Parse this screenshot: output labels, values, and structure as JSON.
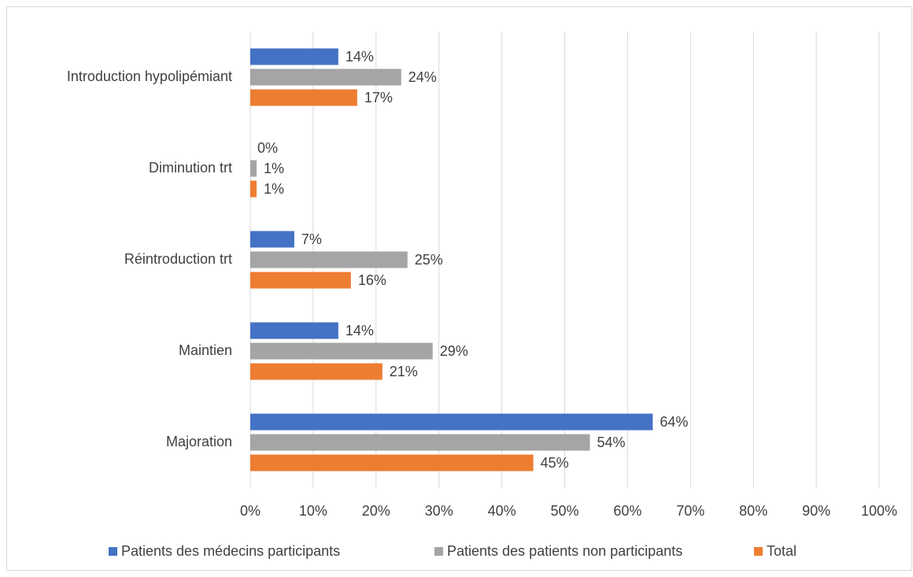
{
  "chart_data": {
    "type": "hbar",
    "categories": [
      "Introduction hypolipémiant",
      "Diminution trt",
      "Réintroduction trt",
      "Maintien",
      "Majoration"
    ],
    "series": [
      {
        "name": "Patients des médecins participants",
        "color": "#4472c4",
        "values": [
          14,
          0,
          7,
          14,
          64
        ],
        "value_labels": [
          "14%",
          "0%",
          "7%",
          "14%",
          "64%"
        ]
      },
      {
        "name": "Patients des patients non participants",
        "color": "#a5a5a5",
        "values": [
          24,
          1,
          25,
          29,
          54
        ],
        "value_labels": [
          "24%",
          "1%",
          "25%",
          "29%",
          "54%"
        ]
      },
      {
        "name": "Total",
        "color": "#ed7d31",
        "values": [
          17,
          1,
          16,
          21,
          45
        ],
        "value_labels": [
          "17%",
          "1%",
          "16%",
          "21%",
          "45%"
        ]
      }
    ],
    "xlim": [
      0,
      100
    ],
    "xticks": [
      {
        "value": 0,
        "label": "0%"
      },
      {
        "value": 10,
        "label": "10%"
      },
      {
        "value": 20,
        "label": "20%"
      },
      {
        "value": 30,
        "label": "30%"
      },
      {
        "value": 40,
        "label": "40%"
      },
      {
        "value": 50,
        "label": "50%"
      },
      {
        "value": 60,
        "label": "60%"
      },
      {
        "value": 70,
        "label": "70%"
      },
      {
        "value": 80,
        "label": "80%"
      },
      {
        "value": 90,
        "label": "90%"
      },
      {
        "value": 100,
        "label": "100%"
      }
    ],
    "grid": true,
    "legend": "bottom"
  }
}
